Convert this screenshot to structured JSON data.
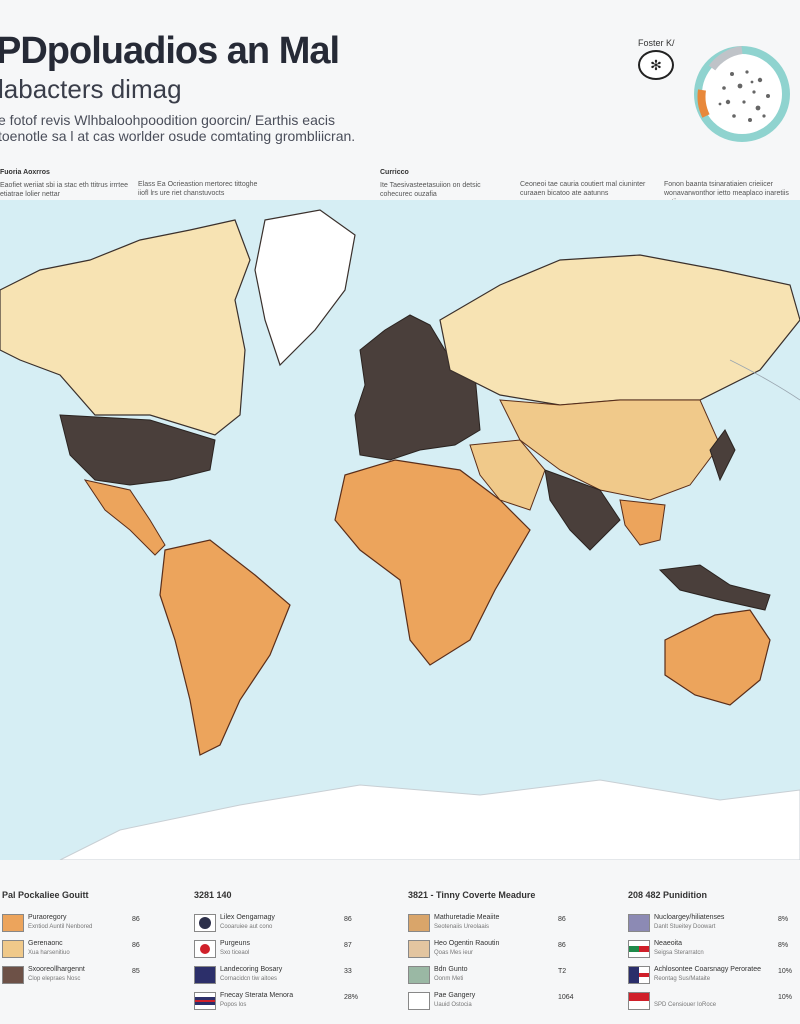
{
  "header": {
    "title": "PDpoluadios an Mal",
    "subtitle": "labacters dimag",
    "intro": "e fotof revis Wlhbaloohpoodition goorcin/ Earthis eacis toenotle sa l at cas worlder osude comtating grombliicran.",
    "corner_label": "Foster K/",
    "badge_icon": "paw-icon"
  },
  "columns": [
    {
      "heading": "Fuoria Aoxrros",
      "text": "Eaofiet weriiat sbi ia stac eth ttitrus irrrtee etiatrae lolier nettar"
    },
    {
      "heading": "",
      "text": "Elass Ea Ocrieastion mertorec tittoghe iiofl lrs ure riet chanstuvocts"
    },
    {
      "heading": "Curricco",
      "text": "Ite Taesivasteetasuiion on detsic cohecurec ouzafia"
    },
    {
      "heading": "",
      "text": "Ceoneoi tae cauria coutiert mal ciuninter curaaen bicatoo ate aatunns"
    },
    {
      "heading": "",
      "text": "Fonon baanta tsinaratiaien crieiicer wonavarwonthor ietto meaplaco inaretiis satiirre"
    }
  ],
  "map": {
    "colors": {
      "ocean": "#d6eef4",
      "high": "#4a3f3b",
      "medium": "#f0c98a",
      "low": "#f7e3b3",
      "orange": "#eca45c",
      "ice": "#ffffff"
    }
  },
  "legend": [
    {
      "title": "Pal Pockaliee Gouitt",
      "rows": [
        {
          "label": "Puraoregory",
          "sub": "Exntiod Auntil Nenbored",
          "value": "86",
          "color": "#eca45c"
        },
        {
          "label": "Gerenaonc",
          "sub": "Xua harsenitiuo",
          "value": "86",
          "color": "#f0c98a"
        },
        {
          "label": "Sxooreollhargennt",
          "sub": "Clop elepraes Nosc",
          "value": "85",
          "color": "#6d5147"
        }
      ]
    },
    {
      "title": "3281 140",
      "rows": [
        {
          "label": "Lilex Oengarnagy",
          "sub": "Cooaruiee aut cono",
          "value": "86",
          "color": "#2c2f4a"
        },
        {
          "label": "Purgeuns",
          "sub": "Sxo ticeaol",
          "value": "87",
          "color": "#ffffff"
        },
        {
          "label": "Landecoring Bosary",
          "sub": "Cornacidcn tiw aitoes",
          "value": "33",
          "color": "#2c2f6a"
        },
        {
          "label": "Fnecay Sterata Menora",
          "sub": "Popos los",
          "value": "28%",
          "color": "#ffffff"
        }
      ]
    },
    {
      "title": "3821 - Tinny Coverte Meadure",
      "rows": [
        {
          "label": "Mathuretadie Meaiite",
          "sub": "Seotenaiis Ureolaais",
          "value": "86",
          "color": "#d9a56a"
        },
        {
          "label": "Heo Ogentin Raoutin",
          "sub": "Qoas Mes ieur",
          "value": "86",
          "color": "#e3c5a0"
        },
        {
          "label": "Bdn Gunto",
          "sub": "Oonm Meti",
          "value": "T2",
          "color": "#9ab8a4"
        },
        {
          "label": "Pae Gangery",
          "sub": "Uauid Ostocia",
          "value": "1064",
          "color": "#ffffff"
        }
      ]
    },
    {
      "title": "208 482 Punidition",
      "rows": [
        {
          "label": "Nucloargey/hiliatenses",
          "sub": "Danlt Stueitey Doowart",
          "value": "8%",
          "color": "#8c8ab4"
        },
        {
          "label": "Neaeoita",
          "sub": "Seigsa Sterarratcn",
          "value": "8%",
          "color": "#ffffff"
        },
        {
          "label": "Achlosontee Coarsnagy Peroratee",
          "sub": "Reontag Sus/Mataite",
          "value": "10%",
          "color": "#2a2e6a"
        },
        {
          "label": "",
          "sub": "SPD Censiouer IoRoce",
          "value": "10%",
          "color": "#ffffff"
        }
      ]
    }
  ]
}
